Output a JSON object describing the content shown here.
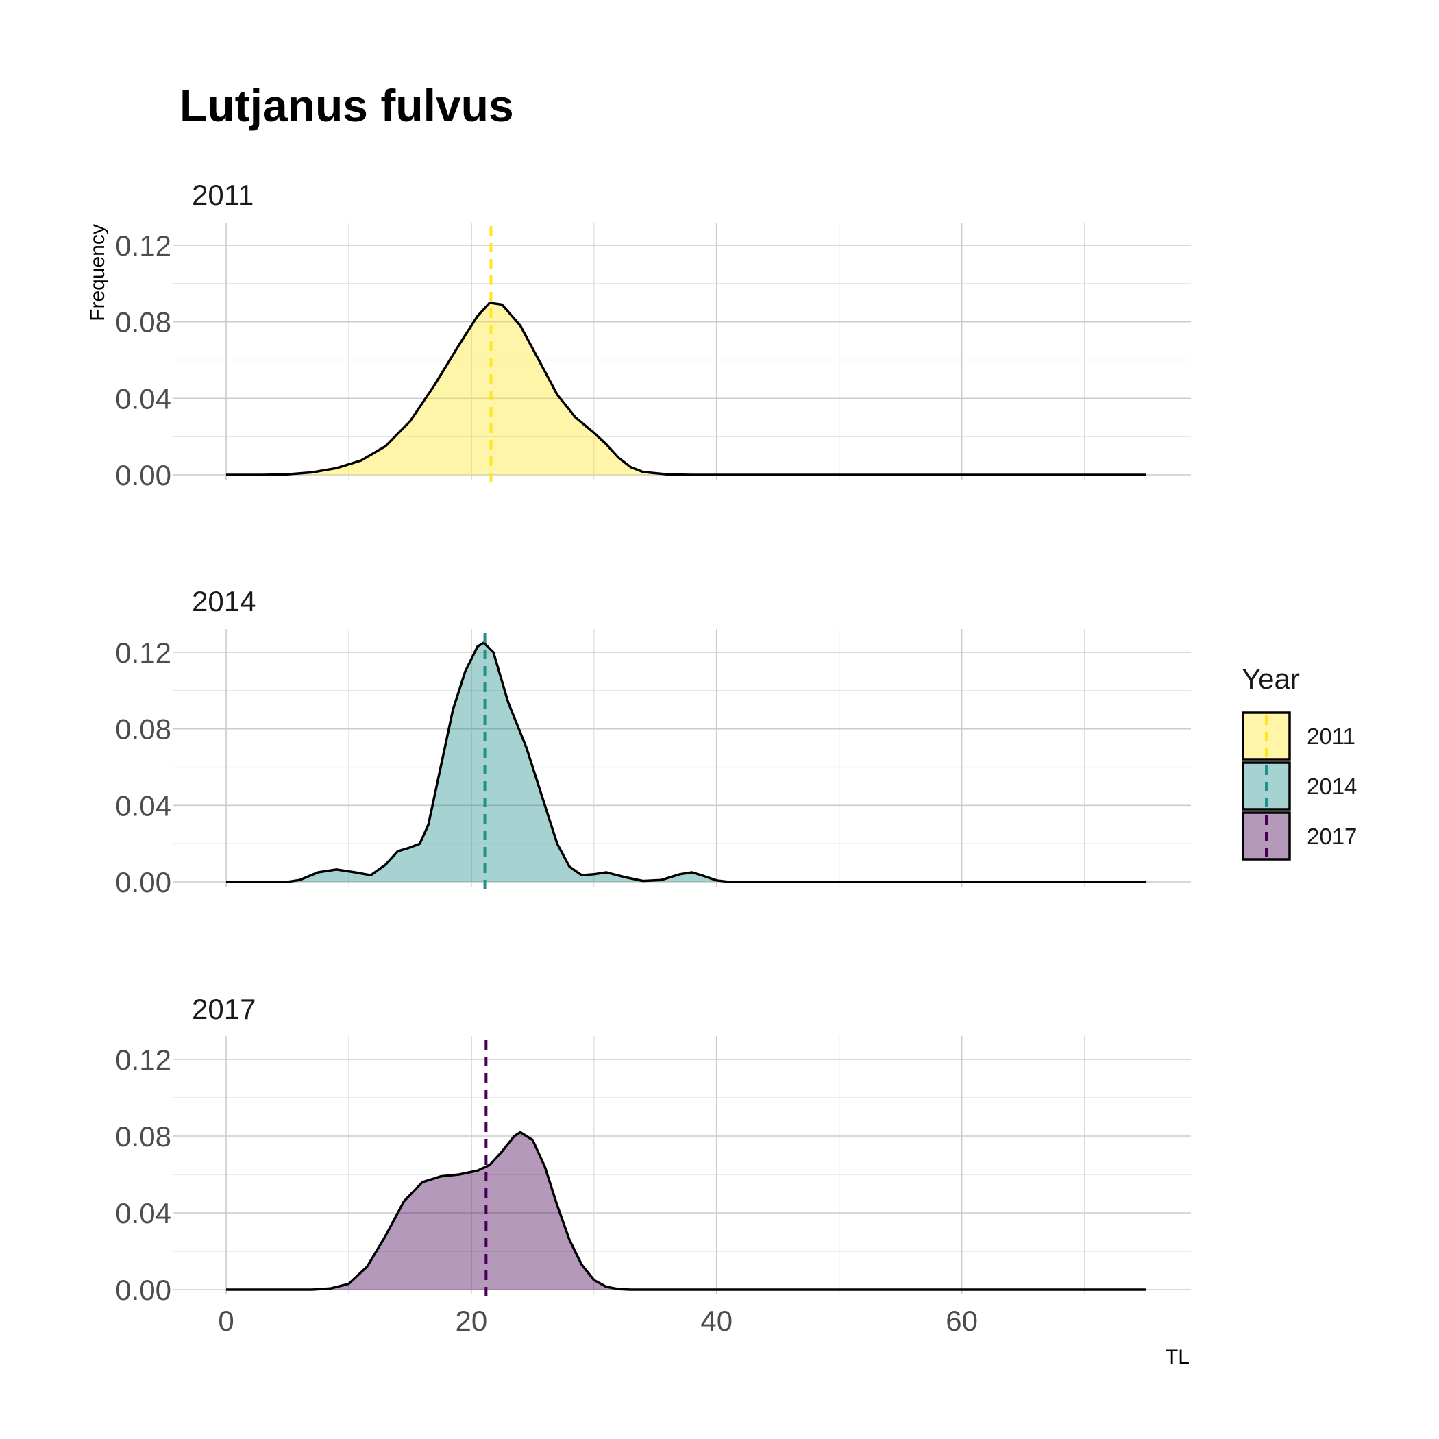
{
  "chart_data": {
    "type": "area",
    "title": "Lutjanus fulvus",
    "xlabel": "TL",
    "ylabel": "Frequency",
    "xlim": [
      0,
      75
    ],
    "ylim": [
      0,
      0.12
    ],
    "x_ticks": [
      0,
      20,
      40,
      60
    ],
    "x_minor_ticks": [
      10,
      30,
      50,
      70
    ],
    "y_ticks": [
      0.0,
      0.04,
      0.08,
      0.12
    ],
    "y_tick_labels": [
      "0.00",
      "0.04",
      "0.08",
      "0.12"
    ],
    "y_minor_ticks": [
      0.02,
      0.06,
      0.1
    ],
    "legend": {
      "title": "Year",
      "position": "right",
      "entries": [
        {
          "label": "2011",
          "fill": "#FDE725",
          "line": "#FDE725"
        },
        {
          "label": "2014",
          "fill": "#21908C",
          "line": "#21908C"
        },
        {
          "label": "2017",
          "fill": "#440154",
          "line": "#440154"
        }
      ]
    },
    "series": [
      {
        "name": "2011",
        "fill": "#FDE725",
        "line_color": "#FDE725",
        "mean_line": 21.6,
        "points": [
          [
            0,
            0
          ],
          [
            3,
            0
          ],
          [
            5,
            0.0003
          ],
          [
            7,
            0.0013
          ],
          [
            9,
            0.0035
          ],
          [
            11,
            0.0075
          ],
          [
            13,
            0.015
          ],
          [
            15,
            0.028
          ],
          [
            17,
            0.047
          ],
          [
            19,
            0.068
          ],
          [
            20.5,
            0.083
          ],
          [
            21.5,
            0.09
          ],
          [
            22.5,
            0.089
          ],
          [
            24,
            0.078
          ],
          [
            25.5,
            0.06
          ],
          [
            27,
            0.042
          ],
          [
            28.5,
            0.03
          ],
          [
            30,
            0.022
          ],
          [
            31,
            0.016
          ],
          [
            32,
            0.009
          ],
          [
            33,
            0.004
          ],
          [
            34,
            0.0015
          ],
          [
            36,
            0.0002
          ],
          [
            38,
            0
          ],
          [
            75,
            0
          ]
        ]
      },
      {
        "name": "2014",
        "fill": "#21908C",
        "line_color": "#21908C",
        "mean_line": 21.1,
        "points": [
          [
            0,
            0
          ],
          [
            5,
            0
          ],
          [
            6,
            0.001
          ],
          [
            7.5,
            0.005
          ],
          [
            9,
            0.0065
          ],
          [
            10.5,
            0.005
          ],
          [
            11.8,
            0.0035
          ],
          [
            13,
            0.009
          ],
          [
            14,
            0.016
          ],
          [
            15,
            0.018
          ],
          [
            15.8,
            0.02
          ],
          [
            16.5,
            0.03
          ],
          [
            17.5,
            0.06
          ],
          [
            18.5,
            0.09
          ],
          [
            19.5,
            0.11
          ],
          [
            20.5,
            0.123
          ],
          [
            21,
            0.125
          ],
          [
            21.8,
            0.12
          ],
          [
            23,
            0.094
          ],
          [
            24.5,
            0.07
          ],
          [
            26,
            0.04
          ],
          [
            27,
            0.02
          ],
          [
            28,
            0.008
          ],
          [
            29,
            0.0035
          ],
          [
            30,
            0.004
          ],
          [
            31,
            0.005
          ],
          [
            32.5,
            0.0025
          ],
          [
            34,
            0.0005
          ],
          [
            35.5,
            0.001
          ],
          [
            37,
            0.004
          ],
          [
            38,
            0.005
          ],
          [
            39,
            0.003
          ],
          [
            40,
            0.0008
          ],
          [
            41,
            0
          ],
          [
            75,
            0
          ]
        ]
      },
      {
        "name": "2017",
        "fill": "#440154",
        "line_color": "#440154",
        "mean_line": 21.2,
        "points": [
          [
            0,
            0
          ],
          [
            7,
            0
          ],
          [
            8.5,
            0.0006
          ],
          [
            10,
            0.003
          ],
          [
            11.5,
            0.012
          ],
          [
            13,
            0.028
          ],
          [
            14.5,
            0.046
          ],
          [
            16,
            0.056
          ],
          [
            17.5,
            0.059
          ],
          [
            19,
            0.06
          ],
          [
            20.5,
            0.062
          ],
          [
            21.5,
            0.065
          ],
          [
            22.5,
            0.072
          ],
          [
            23.5,
            0.08
          ],
          [
            24,
            0.082
          ],
          [
            25,
            0.078
          ],
          [
            26,
            0.064
          ],
          [
            27,
            0.044
          ],
          [
            28,
            0.026
          ],
          [
            29,
            0.013
          ],
          [
            30,
            0.005
          ],
          [
            31,
            0.0015
          ],
          [
            32,
            0.0003
          ],
          [
            33,
            0
          ],
          [
            75,
            0
          ]
        ]
      }
    ]
  }
}
